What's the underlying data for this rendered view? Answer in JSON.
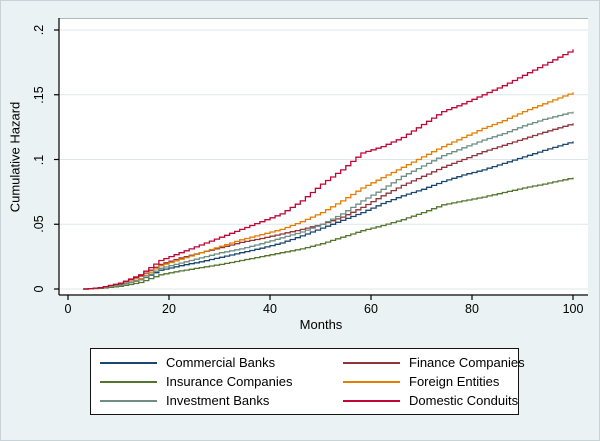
{
  "chart": {
    "ylabel": "Cumulative Hazard",
    "xlabel": "Months",
    "yticks": [
      {
        "v": 0,
        "label": "0"
      },
      {
        "v": 0.05,
        "label": ".05"
      },
      {
        "v": 0.1,
        "label": ".1"
      },
      {
        "v": 0.15,
        "label": ".15"
      },
      {
        "v": 0.2,
        "label": ".2"
      }
    ],
    "xticks": [
      {
        "v": 0,
        "label": "0"
      },
      {
        "v": 20,
        "label": "20"
      },
      {
        "v": 40,
        "label": "40"
      },
      {
        "v": 60,
        "label": "60"
      },
      {
        "v": 80,
        "label": "80"
      },
      {
        "v": 100,
        "label": "100"
      }
    ]
  },
  "chart_data": {
    "type": "line",
    "subtype": "step-function cumulative hazard curves (Nelson-Aalen style)",
    "title": "",
    "xlabel": "Months",
    "ylabel": "Cumulative Hazard",
    "xlim": [
      0,
      100
    ],
    "ylim": [
      0,
      0.2
    ],
    "grid": "horizontal gridlines only, very light blue",
    "legend_position": "bottom, boxed, 2 columns, 3 rows",
    "colors": {
      "graph_background": "#EAF2F3",
      "plot_background": "#FFFFFF",
      "gridline": "#DCE7EB",
      "axis": "#000000",
      "legend_border": "#141414"
    },
    "series": [
      {
        "name": "Commercial Banks",
        "color": "#1A476F",
        "points": [
          [
            3,
            0
          ],
          [
            6,
            0.001
          ],
          [
            10,
            0.003
          ],
          [
            14,
            0.007
          ],
          [
            18,
            0.0145
          ],
          [
            22,
            0.018
          ],
          [
            26,
            0.021
          ],
          [
            30,
            0.0245
          ],
          [
            34,
            0.028
          ],
          [
            38,
            0.0315
          ],
          [
            42,
            0.0355
          ],
          [
            46,
            0.041
          ],
          [
            50,
            0.047
          ],
          [
            54,
            0.053
          ],
          [
            58,
            0.059
          ],
          [
            62,
            0.066
          ],
          [
            66,
            0.072
          ],
          [
            70,
            0.077
          ],
          [
            74,
            0.083
          ],
          [
            78,
            0.088
          ],
          [
            82,
            0.092
          ],
          [
            86,
            0.097
          ],
          [
            90,
            0.102
          ],
          [
            94,
            0.107
          ],
          [
            100,
            0.114
          ]
        ]
      },
      {
        "name": "Finance Companies",
        "color": "#90353B",
        "points": [
          [
            3,
            0
          ],
          [
            6,
            0.001
          ],
          [
            10,
            0.004
          ],
          [
            14,
            0.01
          ],
          [
            18,
            0.019
          ],
          [
            22,
            0.024
          ],
          [
            26,
            0.028
          ],
          [
            30,
            0.032
          ],
          [
            34,
            0.036
          ],
          [
            38,
            0.039
          ],
          [
            42,
            0.0425
          ],
          [
            46,
            0.046
          ],
          [
            50,
            0.05
          ],
          [
            54,
            0.0555
          ],
          [
            58,
            0.063
          ],
          [
            62,
            0.072
          ],
          [
            66,
            0.08
          ],
          [
            70,
            0.087
          ],
          [
            74,
            0.094
          ],
          [
            78,
            0.1
          ],
          [
            82,
            0.106
          ],
          [
            86,
            0.111
          ],
          [
            90,
            0.116
          ],
          [
            94,
            0.121
          ],
          [
            100,
            0.128
          ]
        ]
      },
      {
        "name": "Insurance Companies",
        "color": "#55752F",
        "points": [
          [
            3,
            0
          ],
          [
            6,
            0.0005
          ],
          [
            10,
            0.002
          ],
          [
            14,
            0.005
          ],
          [
            18,
            0.011
          ],
          [
            22,
            0.014
          ],
          [
            26,
            0.0165
          ],
          [
            30,
            0.019
          ],
          [
            34,
            0.022
          ],
          [
            38,
            0.025
          ],
          [
            42,
            0.028
          ],
          [
            46,
            0.031
          ],
          [
            50,
            0.035
          ],
          [
            54,
            0.04
          ],
          [
            58,
            0.045
          ],
          [
            62,
            0.049
          ],
          [
            66,
            0.0535
          ],
          [
            70,
            0.059
          ],
          [
            74,
            0.065
          ],
          [
            78,
            0.068
          ],
          [
            82,
            0.071
          ],
          [
            86,
            0.0745
          ],
          [
            90,
            0.078
          ],
          [
            94,
            0.081
          ],
          [
            100,
            0.086
          ]
        ]
      },
      {
        "name": "Foreign Entities",
        "color": "#E37E00",
        "points": [
          [
            3,
            0
          ],
          [
            6,
            0.001
          ],
          [
            10,
            0.003
          ],
          [
            14,
            0.008
          ],
          [
            18,
            0.018
          ],
          [
            22,
            0.023
          ],
          [
            26,
            0.028
          ],
          [
            30,
            0.033
          ],
          [
            34,
            0.038
          ],
          [
            38,
            0.042
          ],
          [
            42,
            0.046
          ],
          [
            46,
            0.052
          ],
          [
            50,
            0.059
          ],
          [
            54,
            0.068
          ],
          [
            58,
            0.078
          ],
          [
            62,
            0.086
          ],
          [
            66,
            0.094
          ],
          [
            70,
            0.102
          ],
          [
            74,
            0.11
          ],
          [
            78,
            0.117
          ],
          [
            82,
            0.124
          ],
          [
            86,
            0.13
          ],
          [
            90,
            0.137
          ],
          [
            94,
            0.143
          ],
          [
            100,
            0.152
          ]
        ]
      },
      {
        "name": "Investment Banks",
        "color": "#6E8E84",
        "points": [
          [
            3,
            0
          ],
          [
            6,
            0.001
          ],
          [
            10,
            0.003
          ],
          [
            14,
            0.007
          ],
          [
            18,
            0.016
          ],
          [
            22,
            0.02
          ],
          [
            26,
            0.024
          ],
          [
            30,
            0.028
          ],
          [
            34,
            0.031
          ],
          [
            38,
            0.035
          ],
          [
            42,
            0.0395
          ],
          [
            46,
            0.044
          ],
          [
            50,
            0.05
          ],
          [
            54,
            0.058
          ],
          [
            58,
            0.068
          ],
          [
            62,
            0.077
          ],
          [
            66,
            0.087
          ],
          [
            70,
            0.095
          ],
          [
            74,
            0.103
          ],
          [
            78,
            0.109
          ],
          [
            82,
            0.115
          ],
          [
            86,
            0.12
          ],
          [
            90,
            0.126
          ],
          [
            94,
            0.131
          ],
          [
            100,
            0.137
          ]
        ]
      },
      {
        "name": "Domestic Conduits",
        "color": "#C10534",
        "points": [
          [
            3,
            0
          ],
          [
            6,
            0.001
          ],
          [
            10,
            0.0045
          ],
          [
            14,
            0.011
          ],
          [
            18,
            0.022
          ],
          [
            22,
            0.028
          ],
          [
            26,
            0.034
          ],
          [
            30,
            0.04
          ],
          [
            34,
            0.046
          ],
          [
            38,
            0.052
          ],
          [
            42,
            0.058
          ],
          [
            46,
            0.068
          ],
          [
            50,
            0.081
          ],
          [
            54,
            0.092
          ],
          [
            58,
            0.105
          ],
          [
            62,
            0.11
          ],
          [
            66,
            0.117
          ],
          [
            70,
            0.127
          ],
          [
            74,
            0.137
          ],
          [
            78,
            0.143
          ],
          [
            82,
            0.15
          ],
          [
            86,
            0.157
          ],
          [
            90,
            0.165
          ],
          [
            94,
            0.173
          ],
          [
            100,
            0.185
          ]
        ]
      }
    ]
  }
}
